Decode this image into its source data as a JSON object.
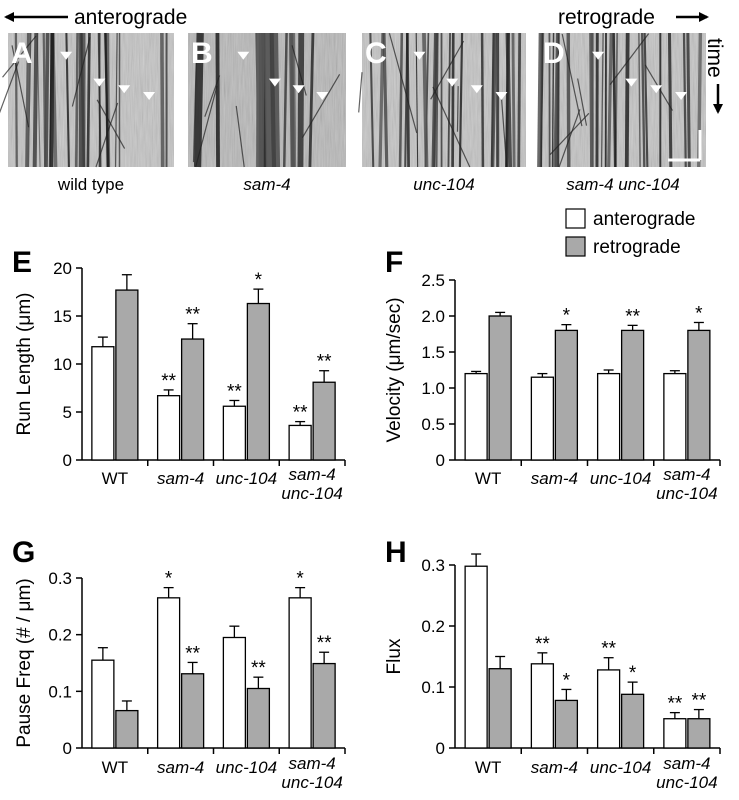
{
  "top": {
    "left_label": "anterograde",
    "right_label": "retrograde",
    "time_label": "time"
  },
  "kymographs": [
    {
      "letter": "A",
      "label": "wild type",
      "italic": false
    },
    {
      "letter": "B",
      "label": "sam-4",
      "italic": true
    },
    {
      "letter": "C",
      "label": "unc-104",
      "italic": true
    },
    {
      "letter": "D",
      "label": "sam-4 unc-104",
      "italic": true
    }
  ],
  "legend": {
    "entries": [
      {
        "label": "anterograde",
        "color": "#ffffff"
      },
      {
        "label": "retrograde",
        "color": "#a9a9a9"
      }
    ]
  },
  "colors": {
    "anterograde": "#ffffff",
    "retrograde": "#a9a9a9",
    "axis": "#000000"
  },
  "chart_data": [
    {
      "panel": "E",
      "type": "bar",
      "ylabel": "Run Length (μm)",
      "ylim": [
        0,
        20
      ],
      "yticks": [
        0,
        5,
        10,
        15,
        20
      ],
      "tick_labels": [
        "0",
        "5",
        "10",
        "15",
        "20"
      ],
      "categories": [
        "WT",
        "sam-4",
        "unc-104",
        "sam-4 unc-104"
      ],
      "series": [
        {
          "name": "anterograde",
          "values": [
            11.8,
            6.7,
            5.6,
            3.6
          ],
          "errors": [
            1.0,
            0.6,
            0.6,
            0.4
          ],
          "sig": [
            "",
            "**",
            "**",
            "**"
          ]
        },
        {
          "name": "retrograde",
          "values": [
            17.7,
            12.6,
            16.3,
            8.1
          ],
          "errors": [
            1.6,
            1.6,
            1.5,
            1.2
          ],
          "sig": [
            "",
            "**",
            "*",
            "**"
          ]
        }
      ],
      "grid": false
    },
    {
      "panel": "F",
      "type": "bar",
      "ylabel": "Velocity (μm/sec)",
      "ylim": [
        0,
        2.5
      ],
      "yticks": [
        0,
        0.5,
        1.0,
        1.5,
        2.0,
        2.5
      ],
      "tick_labels": [
        "0",
        "0.5",
        "1.0",
        "1.5",
        "2.0",
        "2.5"
      ],
      "categories": [
        "WT",
        "sam-4",
        "unc-104",
        "sam-4 unc-104"
      ],
      "series": [
        {
          "name": "anterograde",
          "values": [
            1.2,
            1.15,
            1.2,
            1.2
          ],
          "errors": [
            0.03,
            0.05,
            0.05,
            0.04
          ],
          "sig": [
            "",
            "",
            "",
            ""
          ]
        },
        {
          "name": "retrograde",
          "values": [
            2.0,
            1.8,
            1.8,
            1.8
          ],
          "errors": [
            0.05,
            0.08,
            0.07,
            0.11
          ],
          "sig": [
            "",
            "*",
            "**",
            "*"
          ]
        }
      ],
      "grid": false
    },
    {
      "panel": "G",
      "type": "bar",
      "ylabel": "Pause Freq  (# / μm)",
      "ylim": [
        0,
        0.3
      ],
      "yticks": [
        0,
        0.1,
        0.2,
        0.3
      ],
      "tick_labels": [
        "0",
        "0.1",
        "0.2",
        "0.3"
      ],
      "categories": [
        "WT",
        "sam-4",
        "unc-104",
        "sam-4 unc-104"
      ],
      "series": [
        {
          "name": "anterograde",
          "values": [
            0.155,
            0.265,
            0.195,
            0.265
          ],
          "errors": [
            0.022,
            0.018,
            0.02,
            0.018
          ],
          "sig": [
            "",
            "*",
            "",
            "*"
          ]
        },
        {
          "name": "retrograde",
          "values": [
            0.066,
            0.131,
            0.105,
            0.149
          ],
          "errors": [
            0.017,
            0.02,
            0.02,
            0.02
          ],
          "sig": [
            "",
            "**",
            "**",
            "**"
          ]
        }
      ],
      "grid": false
    },
    {
      "panel": "H",
      "type": "bar",
      "ylabel": "Flux",
      "ylim": [
        0,
        0.33
      ],
      "yticks": [
        0,
        0.1,
        0.2,
        0.3
      ],
      "tick_labels": [
        "0",
        "0.1",
        "0.2",
        "0.3"
      ],
      "categories": [
        "WT",
        "sam-4",
        "unc-104",
        "sam-4 unc-104"
      ],
      "series": [
        {
          "name": "anterograde",
          "values": [
            0.298,
            0.138,
            0.128,
            0.048
          ],
          "errors": [
            0.02,
            0.018,
            0.02,
            0.01
          ],
          "sig": [
            "",
            "**",
            "**",
            "**"
          ]
        },
        {
          "name": "retrograde",
          "values": [
            0.13,
            0.078,
            0.088,
            0.048
          ],
          "errors": [
            0.02,
            0.018,
            0.02,
            0.015
          ],
          "sig": [
            "",
            "*",
            "*",
            "**"
          ]
        }
      ],
      "grid": false
    }
  ]
}
